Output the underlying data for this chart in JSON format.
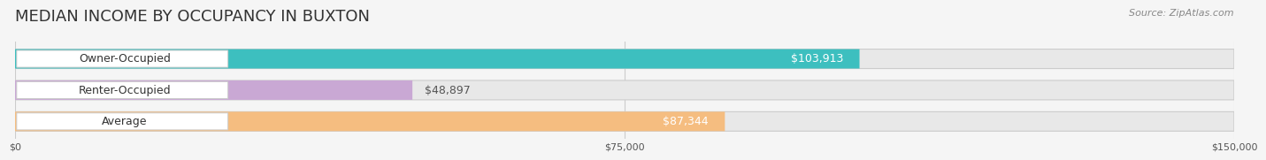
{
  "title": "MEDIAN INCOME BY OCCUPANCY IN BUXTON",
  "source": "Source: ZipAtlas.com",
  "categories": [
    "Owner-Occupied",
    "Renter-Occupied",
    "Average"
  ],
  "values": [
    103913,
    48897,
    87344
  ],
  "bar_colors": [
    "#3dbfbf",
    "#c9a8d4",
    "#f5bd80"
  ],
  "label_colors": [
    "#ffffff",
    "#555555",
    "#555555"
  ],
  "value_labels": [
    "$103,913",
    "$48,897",
    "$87,344"
  ],
  "xlim": [
    0,
    150000
  ],
  "xticks": [
    0,
    75000,
    150000
  ],
  "xtick_labels": [
    "$0",
    "$75,000",
    "$150,000"
  ],
  "background_color": "#f5f5f5",
  "bar_bg_color": "#e8e8e8",
  "title_fontsize": 13,
  "source_fontsize": 8,
  "label_fontsize": 9,
  "value_fontsize": 9
}
